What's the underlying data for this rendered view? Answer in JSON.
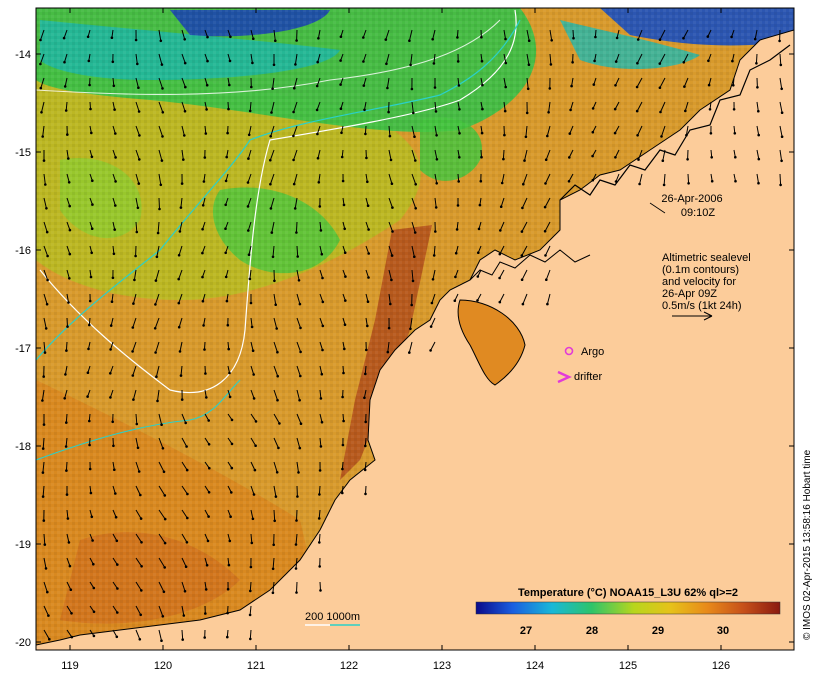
{
  "map": {
    "lon_ticks": [
      "119",
      "120",
      "121",
      "122",
      "123",
      "124",
      "125",
      "126"
    ],
    "lat_ticks": [
      "-14",
      "-15",
      "-16",
      "-17",
      "-18",
      "-19",
      "-20"
    ],
    "lon_range": [
      118.6,
      126.7
    ],
    "lat_range": [
      -20.1,
      -13.6
    ],
    "colors": {
      "land": "#fccc9a",
      "coast": "#000000",
      "sea_orange": "#e79a2a",
      "sea_yellow": "#c8c81c",
      "sea_green": "#34c23e",
      "sea_cyan": "#19c3b5",
      "sea_blue": "#1a37b0",
      "warm_band": "#b5561c",
      "contour_200": "#ffffff",
      "contour_1000": "#2bd0c8",
      "argo": "#e23ad8",
      "drifter": "#e23ad8"
    }
  },
  "annotations": {
    "datetime_line1": "26-Apr-2006",
    "datetime_line2": "09:10Z",
    "altimetry_lines": [
      "Altimetric sealevel",
      "(0.1m contours)",
      "and velocity for",
      "26-Apr 09Z",
      "0.5m/s (1kt 24h)"
    ],
    "argo_label": "Argo",
    "drifter_label": "drifter",
    "bathymetry_label": "200  1000m"
  },
  "legend": {
    "title": "Temperature (°C) NOAA15_L3U 62% ql>=2",
    "ticks": [
      "27",
      "28",
      "29",
      "30"
    ],
    "gradient": [
      "#0a0a8a",
      "#1a5ee0",
      "#19b8d8",
      "#2ec46a",
      "#b8d61c",
      "#e6c21a",
      "#e88a1a",
      "#c6501a",
      "#8a1a10"
    ]
  },
  "credit": "© IMOS 02-Apr-2015 13:58:16 Hobart time"
}
